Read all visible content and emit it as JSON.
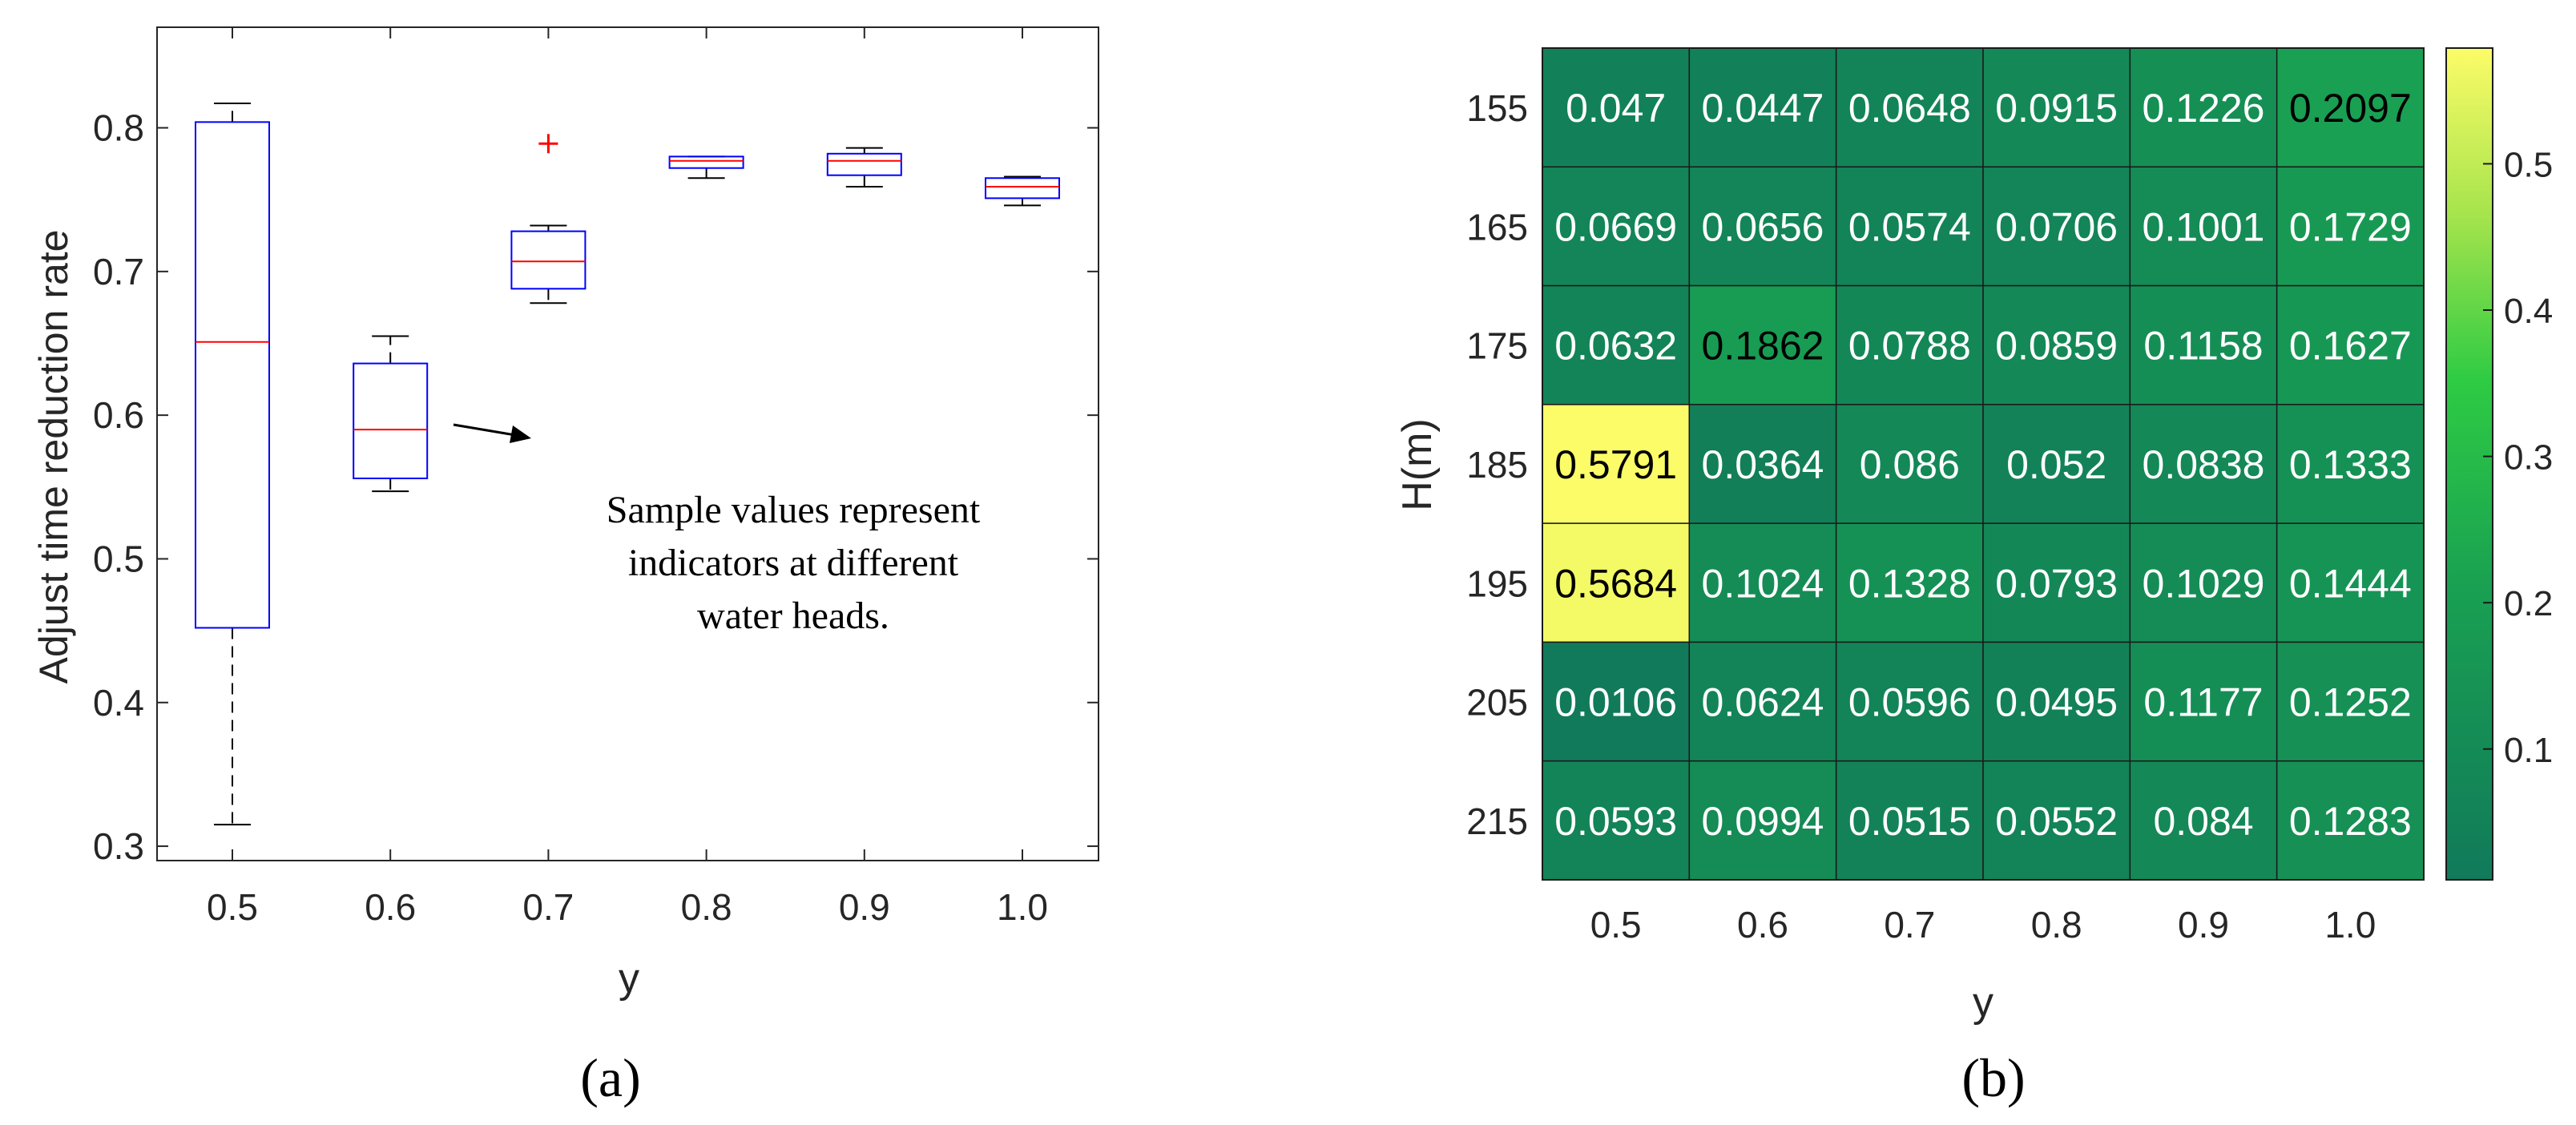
{
  "chart_data": [
    {
      "type": "box",
      "panel_label": "(a)",
      "xlabel": "y",
      "ylabel": "Adjust time reduction rate",
      "categories": [
        "0.5",
        "0.6",
        "0.7",
        "0.8",
        "0.9",
        "1.0"
      ],
      "ylim": [
        0.29,
        0.87
      ],
      "yticks": [
        "0.3",
        "0.4",
        "0.5",
        "0.6",
        "0.7",
        "0.8"
      ],
      "boxes": [
        {
          "category": "0.5",
          "whisker_low": 0.315,
          "q1": 0.452,
          "median": 0.651,
          "q3": 0.804,
          "whisker_high": 0.817,
          "outliers": []
        },
        {
          "category": "0.6",
          "whisker_low": 0.547,
          "q1": 0.556,
          "median": 0.59,
          "q3": 0.636,
          "whisker_high": 0.655,
          "outliers": []
        },
        {
          "category": "0.7",
          "whisker_low": 0.678,
          "q1": 0.688,
          "median": 0.707,
          "q3": 0.728,
          "whisker_high": 0.732,
          "outliers": [
            0.789
          ]
        },
        {
          "category": "0.8",
          "whisker_low": 0.765,
          "q1": 0.772,
          "median": 0.777,
          "q3": 0.78,
          "whisker_high": 0.78,
          "outliers": []
        },
        {
          "category": "0.9",
          "whisker_low": 0.759,
          "q1": 0.767,
          "median": 0.777,
          "q3": 0.782,
          "whisker_high": 0.786,
          "outliers": []
        },
        {
          "category": "1.0",
          "whisker_low": 0.746,
          "q1": 0.751,
          "median": 0.759,
          "q3": 0.765,
          "whisker_high": 0.766,
          "outliers": []
        }
      ],
      "annotation": [
        "Sample values represent",
        "indicators at different",
        "water heads."
      ],
      "colors": {
        "box": "#0000ff",
        "median": "#ff0000",
        "whisker": "#000000",
        "outlier": "#ff0000"
      }
    },
    {
      "type": "heatmap",
      "panel_label": "(b)",
      "xlabel": "y",
      "ylabel": "H(m)",
      "x": [
        "0.5",
        "0.6",
        "0.7",
        "0.8",
        "0.9",
        "1.0"
      ],
      "y": [
        "155",
        "165",
        "175",
        "185",
        "195",
        "205",
        "215"
      ],
      "values": [
        [
          0.047,
          0.0447,
          0.0648,
          0.0915,
          0.1226,
          0.2097
        ],
        [
          0.0669,
          0.0656,
          0.0574,
          0.0706,
          0.1001,
          0.1729
        ],
        [
          0.0632,
          0.1862,
          0.0788,
          0.0859,
          0.1158,
          0.1627
        ],
        [
          0.5791,
          0.0364,
          0.086,
          0.052,
          0.0838,
          0.1333
        ],
        [
          0.5684,
          0.1024,
          0.1328,
          0.0793,
          0.1029,
          0.1444
        ],
        [
          0.0106,
          0.0624,
          0.0596,
          0.0495,
          0.1177,
          0.1252
        ],
        [
          0.0593,
          0.0994,
          0.0515,
          0.0552,
          0.084,
          0.1283
        ]
      ],
      "colorbar": {
        "ticks": [
          "0.1",
          "0.2",
          "0.3",
          "0.4",
          "0.5"
        ],
        "range": [
          0.0106,
          0.5791
        ]
      }
    }
  ]
}
